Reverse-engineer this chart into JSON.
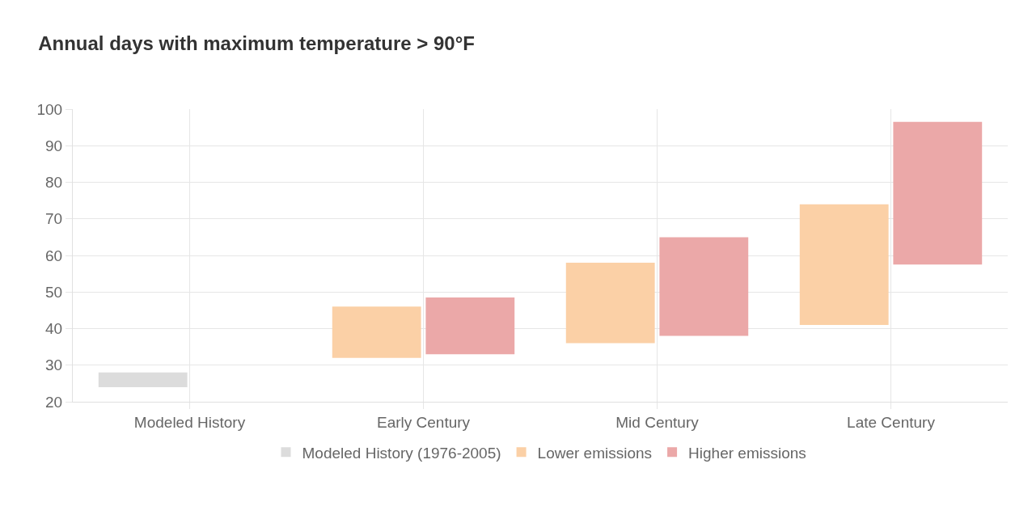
{
  "chart_data": {
    "type": "bar",
    "title": "Annual days with maximum temperature > 90°F",
    "categories": [
      "Modeled History",
      "Early Century",
      "Mid Century",
      "Late Century"
    ],
    "series": [
      {
        "name": "Modeled History (1976-2005)",
        "color": "#dcdcdc",
        "base": [
          24,
          null,
          null,
          null
        ],
        "values": [
          4,
          null,
          null,
          null
        ]
      },
      {
        "name": "Lower emissions",
        "color": "#fbd0a6",
        "base": [
          null,
          32,
          36,
          41
        ],
        "values": [
          null,
          14,
          22,
          33
        ]
      },
      {
        "name": "Higher emissions",
        "color": "#eba8a8",
        "base": [
          null,
          33,
          38,
          57.5
        ],
        "values": [
          null,
          15.5,
          27,
          39
        ]
      }
    ],
    "ylim": [
      20,
      100
    ],
    "yticks": [
      20,
      30,
      40,
      50,
      60,
      70,
      80,
      90,
      100
    ],
    "grid": true,
    "legend": "bottom"
  }
}
